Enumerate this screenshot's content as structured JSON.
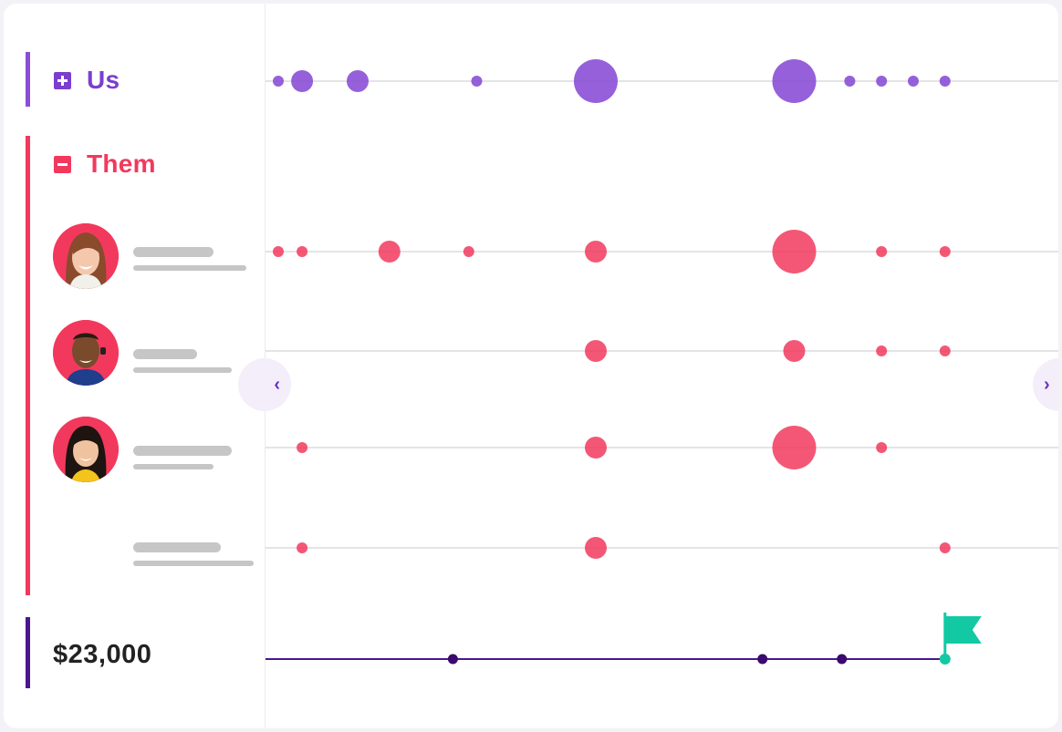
{
  "groups": {
    "us": {
      "label": "Us",
      "toggle": "expand",
      "color": "#8a4fd6"
    },
    "them": {
      "label": "Them",
      "toggle": "collapse",
      "color": "#f2395d"
    }
  },
  "people": [
    {
      "avatar": "person-avatar"
    },
    {
      "avatar": "person-avatar"
    },
    {
      "avatar": "person-avatar"
    },
    {
      "avatar": "none"
    }
  ],
  "total": {
    "value": "$23,000",
    "color": "#4a1690"
  },
  "navigation": {
    "prev_icon": "chevron-left-icon",
    "next_icon": "chevron-right-icon",
    "prev_glyph": "‹",
    "next_glyph": "›"
  },
  "goal": {
    "icon": "flag-icon",
    "color": "#12c9a4"
  },
  "timeline": {
    "us": [
      {
        "t": 1,
        "size": 1
      },
      {
        "t": 1.3,
        "size": 3
      },
      {
        "t": 2,
        "size": 3
      },
      {
        "t": 3.5,
        "size": 1
      },
      {
        "t": 5,
        "size": 6
      },
      {
        "t": 7.5,
        "size": 6
      },
      {
        "t": 8.2,
        "size": 1
      },
      {
        "t": 8.6,
        "size": 1
      },
      {
        "t": 9,
        "size": 1
      },
      {
        "t": 9.4,
        "size": 1
      }
    ],
    "them_rows": [
      [
        {
          "t": 1,
          "size": 1
        },
        {
          "t": 1.3,
          "size": 1
        },
        {
          "t": 2.4,
          "size": 3
        },
        {
          "t": 3.4,
          "size": 1
        },
        {
          "t": 5,
          "size": 3
        },
        {
          "t": 7.5,
          "size": 6
        },
        {
          "t": 8.6,
          "size": 1
        },
        {
          "t": 9.4,
          "size": 1
        }
      ],
      [
        {
          "t": 5,
          "size": 3
        },
        {
          "t": 7.5,
          "size": 3
        },
        {
          "t": 8.6,
          "size": 1
        },
        {
          "t": 9.4,
          "size": 1
        }
      ],
      [
        {
          "t": 1.3,
          "size": 1
        },
        {
          "t": 5,
          "size": 3
        },
        {
          "t": 7.5,
          "size": 6
        },
        {
          "t": 8.6,
          "size": 1
        }
      ],
      [
        {
          "t": 1.3,
          "size": 1
        },
        {
          "t": 5,
          "size": 3
        },
        {
          "t": 9.4,
          "size": 1
        }
      ]
    ],
    "milestones": [
      {
        "t": 3.2
      },
      {
        "t": 7.1
      },
      {
        "t": 8.1
      }
    ],
    "goal_t": 9.4
  }
}
